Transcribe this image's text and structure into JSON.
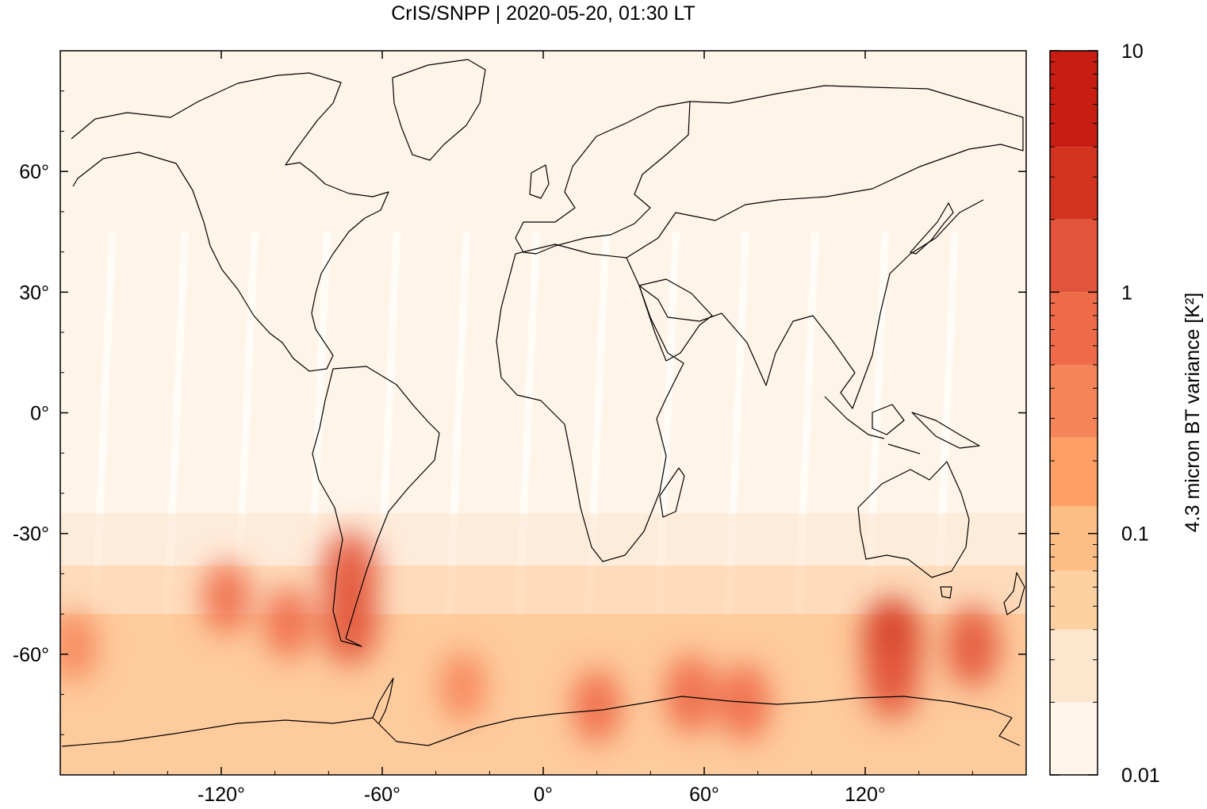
{
  "chart_data": {
    "type": "heatmap",
    "title": "CrIS/SNPP | 2020-05-20, 01:30 LT",
    "projection": "equirectangular world map with coastlines",
    "x_axis": {
      "range": [
        -180,
        180
      ],
      "tick_values": [
        -120,
        -60,
        0,
        60,
        120
      ],
      "tick_labels": [
        "-120°",
        "-60°",
        "0°",
        "60°",
        "120°"
      ]
    },
    "y_axis": {
      "range": [
        -90,
        90
      ],
      "tick_values": [
        60,
        30,
        0,
        -30,
        -60
      ],
      "tick_labels": [
        "60°",
        "30°",
        "0°",
        "-30°",
        "-60°"
      ]
    },
    "colorbar": {
      "label": "4.3 micron BT variance [K²]",
      "scale": "log",
      "range": [
        0.01,
        10
      ],
      "tick_values": [
        0.01,
        0.1,
        1,
        10
      ],
      "tick_labels": [
        "0.01",
        "0.1",
        "1",
        "10"
      ],
      "levels": [
        0.01,
        0.02,
        0.04,
        0.07,
        0.13,
        0.25,
        0.5,
        1,
        2,
        4,
        10
      ],
      "colors": [
        "#fff5eb",
        "#fee6ce",
        "#fdd0a2",
        "#fdbe85",
        "#fd9f65",
        "#f58559",
        "#ee6a48",
        "#e2553c",
        "#d2331f",
        "#c81d12",
        "#990000"
      ]
    },
    "background_color": "#fef4e8",
    "swath_gap_color": "#fffbf6",
    "hotspots": [
      {
        "lon": -72,
        "lat": -40,
        "value": 1.5
      },
      {
        "lon": -72,
        "lat": -52,
        "value": 1.6
      },
      {
        "lon": 130,
        "lat": -57,
        "value": 2.2
      },
      {
        "lon": 130,
        "lat": -66,
        "value": 1.3
      },
      {
        "lon": 160,
        "lat": -58,
        "value": 1.1
      },
      {
        "lon": 55,
        "lat": -70,
        "value": 0.9
      },
      {
        "lon": 75,
        "lat": -72,
        "value": 0.8
      },
      {
        "lon": -118,
        "lat": -46,
        "value": 0.5
      },
      {
        "lon": -95,
        "lat": -52,
        "value": 0.5
      },
      {
        "lon": -175,
        "lat": -58,
        "value": 0.45
      },
      {
        "lon": 20,
        "lat": -73,
        "value": 0.6
      },
      {
        "lon": -30,
        "lat": -68,
        "value": 0.4
      }
    ]
  }
}
